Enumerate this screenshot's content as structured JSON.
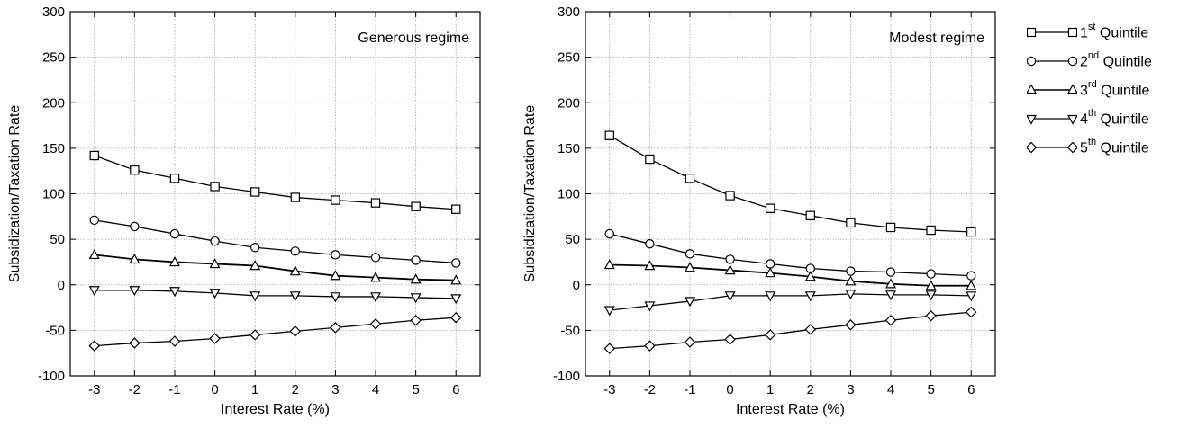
{
  "chart_data": [
    {
      "type": "line",
      "annotation": "Generous regime",
      "xlabel": "Interest Rate (%)",
      "ylabel": "Subsidization/Taxation Rate",
      "xlim": [
        -3.6,
        6.6
      ],
      "ylim": [
        -100,
        300
      ],
      "xticks": [
        "-3",
        "-2",
        "-1",
        "0",
        "1",
        "2",
        "3",
        "4",
        "5",
        "6"
      ],
      "yticks": [
        "300",
        "250",
        "200",
        "150",
        "100",
        "50",
        "0",
        "-50",
        "-100"
      ],
      "grid": true,
      "x": [
        -3,
        -2,
        -1,
        0,
        1,
        2,
        3,
        4,
        5,
        6
      ],
      "series": [
        {
          "name": "1st Quintile",
          "marker": "square",
          "values": [
            142,
            126,
            117,
            108,
            102,
            96,
            93,
            90,
            86,
            83
          ]
        },
        {
          "name": "2nd Quintile",
          "marker": "circle",
          "values": [
            71,
            64,
            56,
            48,
            41,
            37,
            33,
            30,
            27,
            24
          ]
        },
        {
          "name": "3rd Quintile",
          "marker": "triangle-up",
          "values": [
            33,
            28,
            25,
            23,
            21,
            15,
            10,
            8,
            6,
            5
          ]
        },
        {
          "name": "4th Quintile",
          "marker": "triangle-down",
          "values": [
            -6,
            -6,
            -7,
            -9,
            -12,
            -12,
            -13,
            -13,
            -14,
            -15
          ]
        },
        {
          "name": "5th Quintile",
          "marker": "diamond",
          "values": [
            -67,
            -64,
            -62,
            -59,
            -55,
            -51,
            -47,
            -43,
            -39,
            -36
          ]
        }
      ]
    },
    {
      "type": "line",
      "annotation": "Modest regime",
      "xlabel": "Interest Rate (%)",
      "ylabel": "Subsidization/Taxation Rate",
      "xlim": [
        -3.6,
        6.6
      ],
      "ylim": [
        -100,
        300
      ],
      "xticks": [
        "-3",
        "-2",
        "-1",
        "0",
        "1",
        "2",
        "3",
        "4",
        "5",
        "6"
      ],
      "yticks": [
        "300",
        "250",
        "200",
        "150",
        "100",
        "50",
        "0",
        "-50",
        "-100"
      ],
      "grid": true,
      "x": [
        -3,
        -2,
        -1,
        0,
        1,
        2,
        3,
        4,
        5,
        6
      ],
      "series": [
        {
          "name": "1st Quintile",
          "marker": "square",
          "values": [
            164,
            138,
            117,
            98,
            84,
            76,
            68,
            63,
            60,
            58
          ]
        },
        {
          "name": "2nd Quintile",
          "marker": "circle",
          "values": [
            56,
            45,
            34,
            28,
            23,
            18,
            15,
            14,
            12,
            10
          ]
        },
        {
          "name": "3rd Quintile",
          "marker": "triangle-up",
          "values": [
            22,
            21,
            19,
            16,
            13,
            9,
            4,
            1,
            -1,
            -1
          ]
        },
        {
          "name": "4th Quintile",
          "marker": "triangle-down",
          "values": [
            -28,
            -23,
            -18,
            -12,
            -12,
            -12,
            -10,
            -11,
            -11,
            -12
          ]
        },
        {
          "name": "5th Quintile",
          "marker": "diamond",
          "values": [
            -70,
            -67,
            -63,
            -60,
            -55,
            -49,
            -44,
            -39,
            -34,
            -30
          ]
        }
      ]
    }
  ],
  "legend": {
    "placement": "right",
    "items": [
      {
        "ordinal": "1",
        "suffix": "st",
        "word": "Quintile",
        "marker": "square"
      },
      {
        "ordinal": "2",
        "suffix": "nd",
        "word": "Quintile",
        "marker": "circle"
      },
      {
        "ordinal": "3",
        "suffix": "rd",
        "word": "Quintile",
        "marker": "triangle-up"
      },
      {
        "ordinal": "4",
        "suffix": "th",
        "word": "Quintile",
        "marker": "triangle-down"
      },
      {
        "ordinal": "5",
        "suffix": "th",
        "word": "Quintile",
        "marker": "diamond"
      }
    ]
  },
  "colors": {
    "line": "#000000",
    "grid": "#9a9a9a",
    "marker_fill": "#ffffff"
  }
}
